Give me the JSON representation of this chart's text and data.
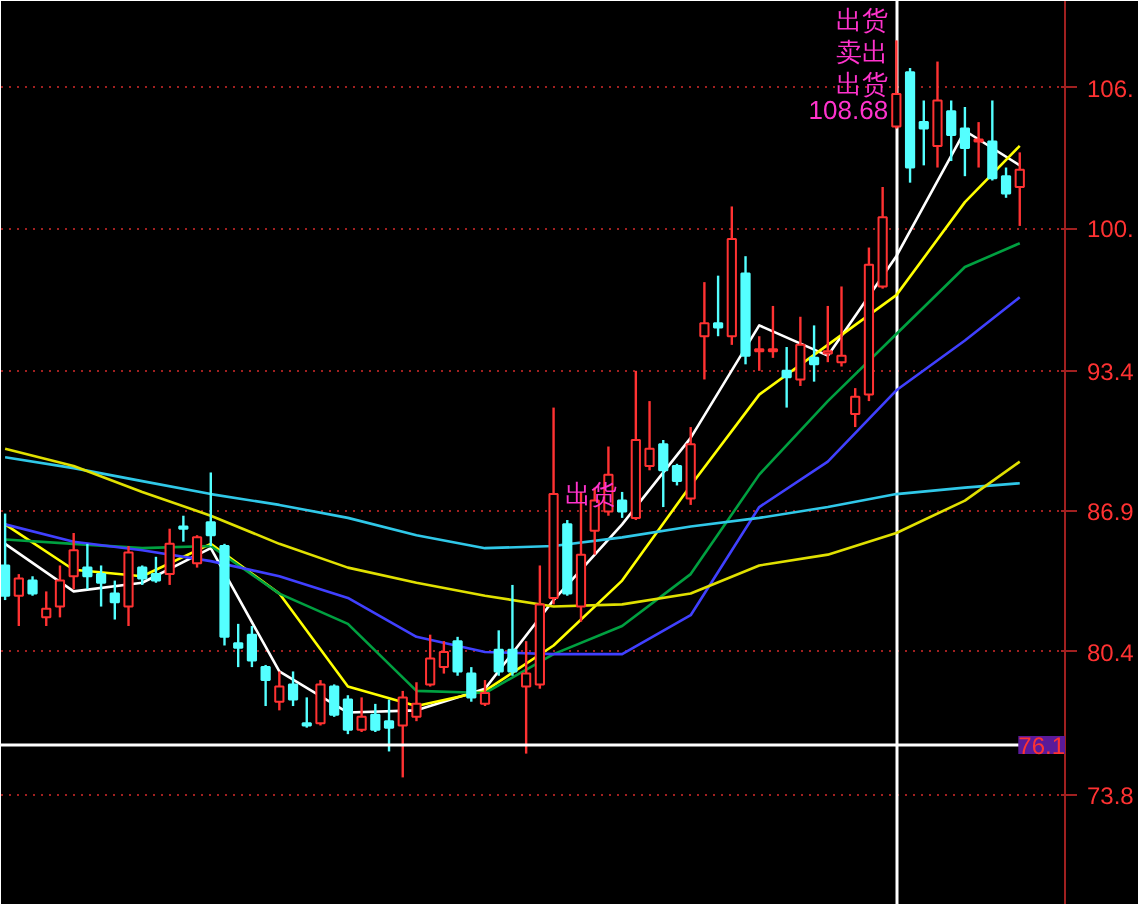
{
  "chart_data": {
    "type": "candlestick",
    "categories": [
      null,
      null,
      null,
      null,
      null,
      null,
      null,
      null,
      null,
      null,
      null,
      null,
      null,
      null,
      null,
      null,
      null,
      null,
      null,
      null,
      null,
      null,
      null,
      null,
      null,
      null,
      null,
      null,
      null,
      null,
      null,
      null,
      null,
      null,
      null,
      null,
      null,
      null,
      null,
      null,
      null,
      null,
      null,
      null,
      null,
      null,
      null,
      null,
      null,
      null,
      null,
      null,
      null,
      null,
      null,
      null,
      null,
      null,
      null,
      null,
      null,
      null,
      null,
      null,
      null,
      null,
      null,
      null,
      null,
      null,
      null,
      null,
      null,
      null,
      null
    ],
    "ohlc": [
      [
        84.4,
        86.8,
        82.8,
        83.0
      ],
      [
        83.0,
        84.0,
        81.6,
        83.8
      ],
      [
        83.7,
        83.9,
        83.0,
        83.1
      ],
      [
        82.0,
        83.2,
        81.6,
        82.4
      ],
      [
        82.5,
        84.4,
        82.0,
        83.7
      ],
      [
        83.9,
        85.9,
        83.3,
        85.1
      ],
      [
        84.3,
        85.4,
        83.3,
        83.9
      ],
      [
        84.0,
        84.4,
        82.5,
        83.6
      ],
      [
        83.1,
        83.7,
        81.9,
        82.7
      ],
      [
        82.5,
        85.3,
        81.6,
        85.0
      ],
      [
        84.3,
        84.4,
        83.5,
        83.8
      ],
      [
        84.0,
        84.8,
        83.6,
        83.7
      ],
      [
        84.0,
        86.1,
        83.5,
        85.4
      ],
      [
        86.2,
        86.7,
        85.5,
        86.1
      ],
      [
        84.5,
        85.8,
        84.3,
        85.7
      ],
      [
        86.4,
        88.7,
        85.3,
        85.8
      ],
      [
        85.3,
        85.4,
        80.7,
        81.1
      ],
      [
        80.8,
        81.7,
        79.7,
        80.6
      ],
      [
        81.2,
        81.6,
        79.7,
        80.0
      ],
      [
        79.7,
        79.8,
        77.9,
        79.1
      ],
      [
        78.1,
        79.5,
        77.7,
        78.8
      ],
      [
        78.9,
        79.5,
        77.9,
        78.2
      ],
      [
        77.1,
        78.3,
        76.9,
        77.0
      ],
      [
        77.1,
        79.1,
        77.0,
        78.9
      ],
      [
        78.8,
        78.9,
        77.4,
        77.5
      ],
      [
        78.2,
        78.4,
        76.6,
        76.8
      ],
      [
        76.8,
        78.3,
        76.7,
        77.4
      ],
      [
        77.5,
        78.0,
        76.7,
        76.8
      ],
      [
        77.2,
        78.2,
        75.8,
        76.9
      ],
      [
        77.0,
        78.6,
        74.6,
        78.3
      ],
      [
        77.4,
        79.0,
        77.2,
        78.0
      ],
      [
        78.9,
        81.2,
        78.8,
        80.1
      ],
      [
        79.7,
        80.9,
        79.4,
        80.4
      ],
      [
        80.9,
        81.1,
        79.3,
        79.5
      ],
      [
        79.4,
        79.7,
        78.1,
        78.3
      ],
      [
        78.0,
        79.1,
        77.9,
        78.5
      ],
      [
        80.5,
        81.4,
        79.3,
        79.5
      ],
      [
        80.5,
        83.5,
        79.3,
        79.5
      ],
      [
        78.8,
        80.9,
        75.7,
        79.4
      ],
      [
        78.9,
        84.4,
        78.7,
        82.6
      ],
      [
        82.9,
        91.7,
        82.6,
        87.7
      ],
      [
        86.3,
        86.5,
        83.0,
        83.1
      ],
      [
        82.5,
        87.8,
        81.8,
        84.9
      ],
      [
        86.0,
        88.0,
        84.9,
        87.4
      ],
      [
        86.9,
        89.9,
        86.7,
        88.6
      ],
      [
        87.4,
        87.8,
        86.6,
        86.9
      ],
      [
        86.6,
        93.4,
        86.5,
        90.2
      ],
      [
        89.0,
        92.0,
        88.8,
        89.8
      ],
      [
        90.0,
        90.2,
        87.1,
        88.8
      ],
      [
        89.0,
        89.1,
        88.1,
        88.3
      ],
      [
        87.5,
        90.8,
        87.2,
        90.0
      ],
      [
        95.0,
        97.5,
        93.0,
        95.6
      ],
      [
        95.6,
        97.8,
        95.0,
        95.4
      ],
      [
        95.0,
        101.0,
        94.6,
        99.5
      ],
      [
        97.9,
        98.7,
        93.7,
        94.1
      ],
      [
        94.3,
        95.0,
        93.4,
        94.4
      ],
      [
        94.3,
        96.4,
        94.0,
        94.4
      ],
      [
        93.4,
        94.5,
        91.7,
        93.1
      ],
      [
        93.0,
        95.9,
        92.7,
        94.6
      ],
      [
        94.0,
        95.5,
        92.9,
        93.7
      ],
      [
        94.2,
        96.4,
        93.8,
        94.3
      ],
      [
        93.8,
        97.3,
        93.6,
        94.1
      ],
      [
        91.4,
        92.6,
        90.8,
        92.2
      ],
      [
        92.3,
        99.1,
        92.0,
        98.3
      ],
      [
        97.3,
        101.9,
        97.2,
        100.5
      ],
      [
        104.7,
        108.68,
        104.6,
        106.2
      ],
      [
        107.2,
        107.4,
        102.1,
        102.8
      ],
      [
        104.9,
        105.9,
        102.9,
        104.6
      ],
      [
        103.8,
        107.7,
        102.8,
        105.9
      ],
      [
        105.4,
        105.9,
        103.1,
        104.3
      ],
      [
        104.6,
        105.6,
        102.4,
        103.7
      ],
      [
        104.0,
        104.9,
        102.8,
        104.1
      ],
      [
        104.0,
        105.9,
        102.2,
        102.3
      ],
      [
        102.4,
        102.8,
        101.4,
        101.6
      ],
      [
        101.9,
        103.5,
        100.1,
        102.7
      ]
    ],
    "colors": [
      "#54ffff",
      "#ff3232",
      "#54ffff",
      "#ff3232",
      "#ff3232",
      "#ff3232",
      "#54ffff",
      "#54ffff",
      "#54ffff",
      "#ff3232",
      "#54ffff",
      "#54ffff",
      "#ff3232",
      "#54ffff",
      "#ff3232",
      "#54ffff",
      "#54ffff",
      "#54ffff",
      "#54ffff",
      "#54ffff",
      "#ff3232",
      "#54ffff",
      "#54ffff",
      "#ff3232",
      "#54ffff",
      "#54ffff",
      "#ff3232",
      "#54ffff",
      "#54ffff",
      "#ff3232",
      "#ff3232",
      "#ff3232",
      "#ff3232",
      "#54ffff",
      "#54ffff",
      "#ff3232",
      "#54ffff",
      "#54ffff",
      "#ff3232",
      "#ff3232",
      "#ff3232",
      "#54ffff",
      "#ff3232",
      "#ff3232",
      "#ff3232",
      "#54ffff",
      "#ff3232",
      "#ff3232",
      "#54ffff",
      "#54ffff",
      "#ff3232",
      "#ff3232",
      "#54ffff",
      "#ff3232",
      "#54ffff",
      "#ff3232",
      "#ff3232",
      "#54ffff",
      "#ff3232",
      "#54ffff",
      "#ff3232",
      "#ff3232",
      "#ff3232",
      "#ff3232",
      "#ff3232",
      "#ff3232",
      "#54ffff",
      "#54ffff",
      "#ff3232",
      "#54ffff",
      "#54ffff",
      "#ff3232",
      "#54ffff",
      "#54ffff",
      "#ff3232"
    ],
    "series": [
      {
        "type": "line",
        "color": "#ffffff",
        "values": [
          85.4,
          null,
          null,
          null,
          null,
          83.2,
          null,
          null,
          null,
          null,
          83.6,
          null,
          null,
          null,
          null,
          85.2,
          null,
          null,
          null,
          null,
          79.5,
          null,
          null,
          null,
          null,
          77.6,
          null,
          null,
          null,
          null,
          77.7,
          null,
          null,
          null,
          null,
          78.7,
          null,
          null,
          null,
          null,
          82.8,
          null,
          null,
          null,
          null,
          86.3,
          null,
          null,
          null,
          null,
          90.3,
          null,
          null,
          null,
          null,
          95.5,
          null,
          null,
          null,
          null,
          94.1,
          null,
          null,
          null,
          null,
          98.7,
          null,
          null,
          null,
          null,
          104.5,
          null,
          null,
          null,
          102.9
        ]
      },
      {
        "type": "line",
        "color": "#ffff00",
        "values": [
          86.3,
          null,
          null,
          null,
          null,
          84.2,
          null,
          null,
          null,
          null,
          83.9,
          null,
          null,
          null,
          null,
          85.4,
          null,
          null,
          null,
          null,
          83.1,
          null,
          null,
          null,
          null,
          78.8,
          null,
          null,
          null,
          null,
          77.9,
          null,
          null,
          null,
          null,
          78.6,
          null,
          null,
          null,
          null,
          80.7,
          null,
          null,
          null,
          null,
          83.7,
          null,
          null,
          null,
          null,
          88.1,
          null,
          null,
          null,
          null,
          92.3,
          null,
          null,
          null,
          null,
          94.6,
          null,
          null,
          null,
          null,
          96.9,
          null,
          null,
          null,
          null,
          101.2,
          null,
          null,
          null,
          103.8
        ]
      },
      {
        "type": "line",
        "color": "#00a040",
        "values": [
          85.6,
          null,
          null,
          null,
          null,
          85.4,
          null,
          null,
          null,
          null,
          85.2,
          null,
          null,
          null,
          null,
          85.3,
          null,
          null,
          null,
          null,
          83.1,
          null,
          null,
          null,
          null,
          81.7,
          null,
          null,
          null,
          null,
          78.6,
          null,
          null,
          null,
          null,
          78.5,
          null,
          null,
          null,
          null,
          80.3,
          null,
          null,
          null,
          null,
          81.6,
          null,
          null,
          null,
          null,
          84.0,
          null,
          null,
          null,
          null,
          88.6,
          null,
          null,
          null,
          null,
          92.0,
          null,
          null,
          null,
          null,
          95.1,
          null,
          null,
          null,
          null,
          98.2,
          null,
          null,
          null,
          99.3
        ]
      },
      {
        "type": "line",
        "color": "#4040ff",
        "values": [
          86.3,
          null,
          null,
          null,
          null,
          85.5,
          null,
          null,
          null,
          null,
          85.1,
          null,
          null,
          null,
          null,
          84.6,
          null,
          null,
          null,
          null,
          83.9,
          null,
          null,
          null,
          null,
          82.9,
          null,
          null,
          null,
          null,
          81.1,
          null,
          null,
          null,
          null,
          80.4,
          null,
          null,
          null,
          null,
          80.3,
          null,
          null,
          null,
          null,
          80.3,
          null,
          null,
          null,
          null,
          82.1,
          null,
          null,
          null,
          null,
          87.1,
          null,
          null,
          null,
          null,
          89.2,
          null,
          null,
          null,
          null,
          92.5,
          null,
          null,
          null,
          null,
          94.8,
          null,
          null,
          null,
          96.8
        ]
      },
      {
        "type": "line",
        "color": "#30c8e8",
        "values": [
          89.4,
          null,
          null,
          null,
          null,
          88.9,
          null,
          null,
          null,
          null,
          88.3,
          null,
          null,
          null,
          null,
          87.7,
          null,
          null,
          null,
          null,
          87.2,
          null,
          null,
          null,
          null,
          86.6,
          null,
          null,
          null,
          null,
          85.8,
          null,
          null,
          null,
          null,
          85.2,
          null,
          null,
          null,
          null,
          85.3,
          null,
          null,
          null,
          null,
          85.7,
          null,
          null,
          null,
          null,
          86.2,
          null,
          null,
          null,
          null,
          86.6,
          null,
          null,
          null,
          null,
          87.1,
          null,
          null,
          null,
          null,
          87.7,
          null,
          null,
          null,
          null,
          88.0,
          null,
          null,
          null,
          88.2
        ]
      },
      {
        "type": "line",
        "color": "#e0e000",
        "values": [
          89.8,
          null,
          null,
          null,
          null,
          89.0,
          null,
          null,
          null,
          null,
          87.8,
          null,
          null,
          null,
          null,
          86.7,
          null,
          null,
          null,
          null,
          85.4,
          null,
          null,
          null,
          null,
          84.3,
          null,
          null,
          null,
          null,
          83.6,
          null,
          null,
          null,
          null,
          83.0,
          null,
          null,
          null,
          null,
          82.5,
          null,
          null,
          null,
          null,
          82.6,
          null,
          null,
          null,
          null,
          83.1,
          null,
          null,
          null,
          null,
          84.4,
          null,
          null,
          null,
          null,
          84.9,
          null,
          null,
          null,
          null,
          85.9,
          null,
          null,
          null,
          null,
          87.4,
          null,
          null,
          null,
          89.2
        ]
      }
    ],
    "ylim": [
      68.7,
      110.5
    ],
    "yticks": [
      {
        "value": 73.8,
        "label": "73.8"
      },
      {
        "value": 80.4,
        "label": "80.4"
      },
      {
        "value": 86.9,
        "label": "86.9"
      },
      {
        "value": 93.4,
        "label": "93.4"
      },
      {
        "value": 100.0,
        "label": "100."
      },
      {
        "value": 106.5,
        "label": "106."
      }
    ],
    "tick_labels": "y",
    "grid": "y",
    "ref_lines": [
      {
        "axis": "y",
        "value": 76.1,
        "label": "76.1",
        "color": "#ffffff"
      }
    ],
    "annotations": [
      {
        "text": "出货",
        "y": 87.7
      },
      "出货",
      "卖出",
      "出货",
      "108.68"
    ]
  }
}
